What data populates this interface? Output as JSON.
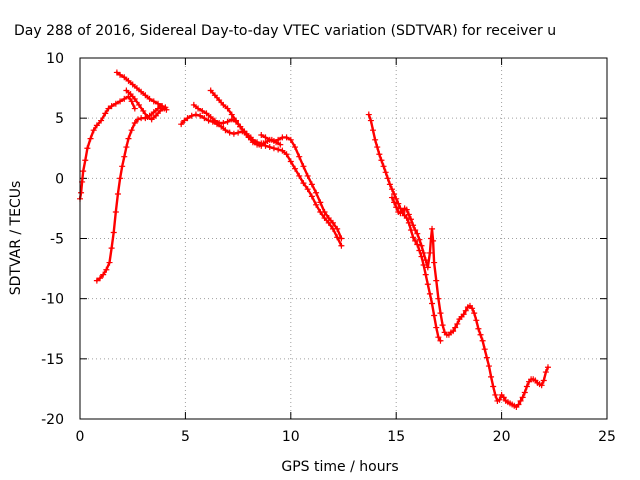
{
  "chart_data": {
    "type": "scatter",
    "title": "Day 288 of 2016, Sidereal Day-to-day VTEC variation (SDTVAR) for receiver u",
    "xlabel": "GPS time / hours",
    "ylabel": "SDTVAR / TECUs",
    "xlim": [
      0,
      25
    ],
    "ylim": [
      -20,
      10
    ],
    "xticks": [
      0,
      5,
      10,
      15,
      20,
      25
    ],
    "yticks": [
      -20,
      -15,
      -10,
      -5,
      0,
      5,
      10
    ],
    "grid": true,
    "legend": "none",
    "color": "#ff0000",
    "marker": "plus",
    "segments": [
      [
        [
          0.0,
          -1.7
        ],
        [
          0.05,
          -1.2
        ],
        [
          0.1,
          -0.3
        ],
        [
          0.15,
          0.6
        ],
        [
          0.25,
          1.5
        ],
        [
          0.35,
          2.5
        ],
        [
          0.5,
          3.3
        ],
        [
          0.65,
          4.0
        ],
        [
          0.8,
          4.4
        ],
        [
          1.0,
          4.8
        ],
        [
          1.2,
          5.4
        ],
        [
          1.35,
          5.8
        ],
        [
          1.5,
          6.0
        ],
        [
          1.7,
          6.2
        ],
        [
          1.9,
          6.4
        ],
        [
          2.1,
          6.6
        ],
        [
          2.3,
          6.8
        ],
        [
          2.45,
          6.4
        ],
        [
          2.6,
          5.8
        ]
      ],
      [
        [
          0.8,
          -8.5
        ],
        [
          0.95,
          -8.3
        ],
        [
          1.1,
          -8.0
        ],
        [
          1.25,
          -7.6
        ],
        [
          1.4,
          -7.0
        ],
        [
          1.5,
          -5.8
        ],
        [
          1.6,
          -4.5
        ],
        [
          1.7,
          -2.8
        ],
        [
          1.8,
          -1.3
        ],
        [
          1.9,
          0.0
        ],
        [
          2.0,
          1.0
        ],
        [
          2.1,
          1.8
        ],
        [
          2.2,
          2.6
        ],
        [
          2.3,
          3.3
        ],
        [
          2.45,
          4.0
        ],
        [
          2.6,
          4.6
        ],
        [
          2.75,
          4.9
        ],
        [
          2.9,
          5.0
        ],
        [
          3.1,
          5.0
        ],
        [
          3.3,
          5.2
        ],
        [
          3.5,
          5.5
        ],
        [
          3.7,
          5.8
        ],
        [
          3.85,
          6.0
        ]
      ],
      [
        [
          1.75,
          8.8
        ],
        [
          1.9,
          8.6
        ],
        [
          2.1,
          8.4
        ],
        [
          2.3,
          8.1
        ],
        [
          2.5,
          7.8
        ],
        [
          2.7,
          7.5
        ],
        [
          2.9,
          7.2
        ],
        [
          3.1,
          6.9
        ],
        [
          3.3,
          6.6
        ],
        [
          3.5,
          6.4
        ],
        [
          3.7,
          6.2
        ],
        [
          3.9,
          6.0
        ],
        [
          4.05,
          5.9
        ]
      ],
      [
        [
          2.2,
          7.3
        ],
        [
          2.4,
          7.0
        ],
        [
          2.6,
          6.6
        ],
        [
          2.8,
          6.1
        ],
        [
          3.0,
          5.6
        ],
        [
          3.2,
          5.1
        ],
        [
          3.4,
          4.9
        ],
        [
          3.6,
          5.2
        ],
        [
          3.8,
          5.6
        ],
        [
          4.0,
          5.8
        ],
        [
          4.1,
          5.7
        ]
      ],
      [
        [
          4.8,
          4.5
        ],
        [
          4.95,
          4.8
        ],
        [
          5.1,
          5.0
        ],
        [
          5.3,
          5.2
        ],
        [
          5.5,
          5.3
        ],
        [
          5.7,
          5.2
        ],
        [
          5.9,
          5.0
        ],
        [
          6.1,
          4.8
        ],
        [
          6.3,
          4.7
        ],
        [
          6.5,
          4.5
        ],
        [
          6.7,
          4.3
        ],
        [
          6.9,
          4.0
        ],
        [
          7.1,
          3.8
        ],
        [
          7.3,
          3.7
        ],
        [
          7.5,
          3.8
        ],
        [
          7.7,
          3.9
        ],
        [
          7.9,
          3.7
        ],
        [
          8.1,
          3.4
        ],
        [
          8.3,
          3.0
        ],
        [
          8.5,
          2.8
        ],
        [
          8.7,
          2.9
        ],
        [
          8.9,
          3.1
        ],
        [
          9.1,
          3.2
        ],
        [
          9.3,
          3.0
        ],
        [
          9.5,
          2.8
        ]
      ],
      [
        [
          5.4,
          6.1
        ],
        [
          5.6,
          5.8
        ],
        [
          5.8,
          5.6
        ],
        [
          6.0,
          5.4
        ],
        [
          6.2,
          5.1
        ],
        [
          6.4,
          4.8
        ],
        [
          6.6,
          4.6
        ],
        [
          6.8,
          4.6
        ],
        [
          7.0,
          4.7
        ],
        [
          7.2,
          4.9
        ],
        [
          7.4,
          4.7
        ],
        [
          7.6,
          4.3
        ],
        [
          7.8,
          3.8
        ],
        [
          8.0,
          3.4
        ],
        [
          8.2,
          3.0
        ],
        [
          8.4,
          2.8
        ],
        [
          8.6,
          2.7
        ]
      ],
      [
        [
          6.2,
          7.3
        ],
        [
          6.4,
          6.9
        ],
        [
          6.6,
          6.5
        ],
        [
          6.8,
          6.1
        ],
        [
          7.0,
          5.8
        ],
        [
          7.2,
          5.3
        ],
        [
          7.4,
          4.8
        ],
        [
          7.6,
          4.3
        ],
        [
          7.8,
          3.9
        ],
        [
          8.0,
          3.5
        ],
        [
          8.2,
          3.2
        ],
        [
          8.4,
          3.0
        ],
        [
          8.6,
          2.9
        ],
        [
          8.8,
          2.7
        ],
        [
          9.0,
          2.6
        ],
        [
          9.2,
          2.5
        ],
        [
          9.4,
          2.4
        ],
        [
          9.6,
          2.3
        ],
        [
          9.8,
          2.0
        ],
        [
          10.0,
          1.4
        ],
        [
          10.2,
          0.8
        ],
        [
          10.4,
          0.2
        ],
        [
          10.6,
          -0.4
        ],
        [
          10.8,
          -0.9
        ],
        [
          11.0,
          -1.5
        ],
        [
          11.2,
          -2.2
        ],
        [
          11.4,
          -2.8
        ],
        [
          11.6,
          -3.3
        ],
        [
          11.8,
          -3.7
        ],
        [
          12.0,
          -4.2
        ],
        [
          12.2,
          -4.9
        ],
        [
          12.4,
          -5.6
        ]
      ],
      [
        [
          8.6,
          3.6
        ],
        [
          8.8,
          3.4
        ],
        [
          9.0,
          3.2
        ],
        [
          9.2,
          3.1
        ],
        [
          9.4,
          3.2
        ],
        [
          9.6,
          3.4
        ],
        [
          9.8,
          3.4
        ],
        [
          10.0,
          3.2
        ],
        [
          10.2,
          2.6
        ],
        [
          10.4,
          1.8
        ],
        [
          10.6,
          1.0
        ],
        [
          10.8,
          0.2
        ],
        [
          11.0,
          -0.5
        ],
        [
          11.2,
          -1.2
        ],
        [
          11.4,
          -2.0
        ],
        [
          11.6,
          -2.8
        ],
        [
          11.8,
          -3.3
        ],
        [
          12.0,
          -3.7
        ],
        [
          12.2,
          -4.2
        ],
        [
          12.4,
          -5.0
        ]
      ],
      [
        [
          13.7,
          5.3
        ],
        [
          13.8,
          4.8
        ],
        [
          13.9,
          4.0
        ],
        [
          14.0,
          3.2
        ],
        [
          14.1,
          2.6
        ],
        [
          14.2,
          2.0
        ],
        [
          14.3,
          1.5
        ],
        [
          14.4,
          1.0
        ],
        [
          14.5,
          0.5
        ],
        [
          14.6,
          0.0
        ],
        [
          14.7,
          -0.5
        ],
        [
          14.8,
          -0.9
        ],
        [
          14.9,
          -1.3
        ],
        [
          15.0,
          -1.7
        ],
        [
          15.1,
          -2.1
        ],
        [
          15.2,
          -2.5
        ],
        [
          15.3,
          -2.8
        ],
        [
          15.4,
          -3.1
        ],
        [
          15.5,
          -3.3
        ],
        [
          15.6,
          -3.7
        ],
        [
          15.7,
          -4.3
        ],
        [
          15.8,
          -4.9
        ],
        [
          15.9,
          -5.2
        ],
        [
          16.0,
          -5.5
        ],
        [
          16.1,
          -6.0
        ],
        [
          16.2,
          -6.5
        ],
        [
          16.3,
          -7.2
        ],
        [
          16.4,
          -8.0
        ],
        [
          16.5,
          -8.8
        ],
        [
          16.6,
          -9.6
        ],
        [
          16.7,
          -10.4
        ],
        [
          16.8,
          -11.4
        ],
        [
          16.9,
          -12.4
        ],
        [
          17.0,
          -13.2
        ],
        [
          17.1,
          -13.5
        ]
      ],
      [
        [
          14.8,
          -1.6
        ],
        [
          14.9,
          -2.0
        ],
        [
          15.0,
          -2.4
        ],
        [
          15.1,
          -2.8
        ],
        [
          15.2,
          -2.9
        ],
        [
          15.3,
          -2.7
        ],
        [
          15.4,
          -2.5
        ],
        [
          15.5,
          -2.6
        ],
        [
          15.6,
          -3.0
        ],
        [
          15.7,
          -3.4
        ],
        [
          15.8,
          -3.9
        ],
        [
          15.9,
          -4.3
        ],
        [
          16.0,
          -4.6
        ],
        [
          16.1,
          -5.1
        ],
        [
          16.2,
          -5.6
        ],
        [
          16.3,
          -6.2
        ],
        [
          16.4,
          -6.8
        ],
        [
          16.5,
          -7.4
        ],
        [
          16.6,
          -6.2
        ],
        [
          16.65,
          -5.0
        ],
        [
          16.7,
          -4.2
        ],
        [
          16.75,
          -5.2
        ],
        [
          16.8,
          -7.0
        ],
        [
          16.9,
          -8.5
        ],
        [
          17.0,
          -10.0
        ],
        [
          17.1,
          -11.2
        ],
        [
          17.2,
          -12.2
        ],
        [
          17.3,
          -12.8
        ],
        [
          17.4,
          -13.0
        ],
        [
          17.5,
          -13.0
        ],
        [
          17.6,
          -12.8
        ],
        [
          17.7,
          -12.7
        ],
        [
          17.8,
          -12.4
        ],
        [
          17.9,
          -12.1
        ],
        [
          18.0,
          -11.7
        ],
        [
          18.1,
          -11.5
        ],
        [
          18.2,
          -11.3
        ],
        [
          18.3,
          -11.0
        ],
        [
          18.4,
          -10.7
        ],
        [
          18.5,
          -10.6
        ],
        [
          18.6,
          -10.8
        ],
        [
          18.7,
          -11.2
        ],
        [
          18.8,
          -11.8
        ],
        [
          18.9,
          -12.5
        ],
        [
          19.0,
          -13.0
        ],
        [
          19.1,
          -13.5
        ],
        [
          19.2,
          -14.2
        ],
        [
          19.3,
          -14.9
        ],
        [
          19.4,
          -15.6
        ],
        [
          19.5,
          -16.5
        ],
        [
          19.6,
          -17.3
        ],
        [
          19.7,
          -18.0
        ],
        [
          19.8,
          -18.5
        ],
        [
          19.9,
          -18.4
        ],
        [
          20.0,
          -18.0
        ],
        [
          20.1,
          -18.2
        ],
        [
          20.2,
          -18.5
        ],
        [
          20.3,
          -18.6
        ],
        [
          20.4,
          -18.7
        ],
        [
          20.5,
          -18.8
        ],
        [
          20.6,
          -18.9
        ],
        [
          20.7,
          -19.0
        ],
        [
          20.8,
          -18.8
        ],
        [
          20.9,
          -18.5
        ],
        [
          21.0,
          -18.2
        ],
        [
          21.1,
          -17.8
        ],
        [
          21.2,
          -17.3
        ],
        [
          21.3,
          -16.9
        ],
        [
          21.4,
          -16.7
        ],
        [
          21.5,
          -16.7
        ],
        [
          21.6,
          -16.8
        ],
        [
          21.7,
          -17.0
        ],
        [
          21.8,
          -17.1
        ],
        [
          21.9,
          -17.2
        ],
        [
          22.0,
          -16.8
        ],
        [
          22.1,
          -16.1
        ],
        [
          22.2,
          -15.7
        ]
      ]
    ]
  }
}
